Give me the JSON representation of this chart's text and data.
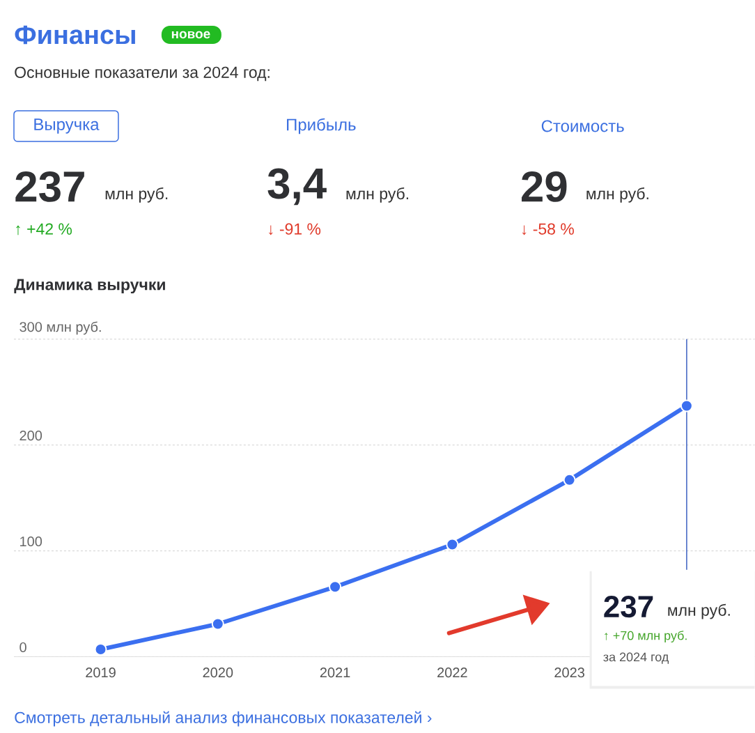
{
  "chart_data": [
    {
      "type": "other",
      "title": "Финансы",
      "subtitle": "Основные показатели за 2024 год:",
      "annotations": [
        "новое",
        "Выручка",
        "Прибыль",
        "Стоимость",
        "237",
        "млн руб.",
        "3,4",
        "млн руб.",
        "29",
        "млн руб.",
        "↑ +42 %",
        "↓ -91 %",
        "↓ -58 %",
        "Смотреть детальный анализ финансовых показателей ›"
      ]
    },
    {
      "type": "line",
      "title": "Динамика выручки",
      "x": [
        2019,
        2020,
        2021,
        2022,
        2023,
        2024
      ],
      "series": [
        {
          "color": "#3b6ff0",
          "values": [
            7,
            31,
            66,
            106,
            167,
            237
          ]
        }
      ],
      "xlim": [
        2018.26,
        2024.58
      ],
      "xticks": [
        2019,
        2020,
        2021,
        2022,
        2023
      ],
      "ylim": [
        0,
        300
      ],
      "yticks": [
        0,
        100,
        200,
        {
          "value": 300,
          "label": "300 млн руб."
        }
      ],
      "grid": "y",
      "marker": "circle",
      "line_style": "solid",
      "ref_lines": [
        {
          "axis": "x",
          "value": 2024,
          "color": "#3b5fc0"
        }
      ],
      "annotations": [
        "237",
        "млн руб.",
        "↑ +70 млн руб.",
        "за 2024 год"
      ]
    }
  ]
}
